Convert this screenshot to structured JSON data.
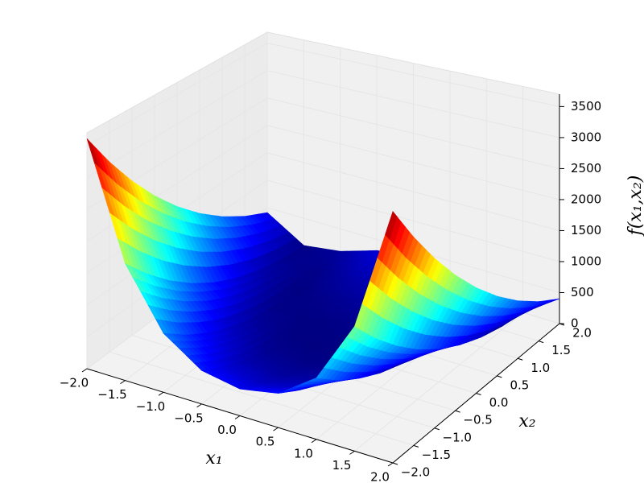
{
  "chart_data": {
    "type": "surface",
    "xlabel": "x₁",
    "ylabel": "x₂",
    "zlabel": "f(x₁,x₂)",
    "colormap": "jet",
    "x": [
      -2,
      -1.5,
      -1,
      -0.5,
      0,
      0.5,
      1,
      1.5,
      2
    ],
    "y": [
      -2,
      -1.5,
      -1,
      -0.5,
      0,
      0.5,
      1,
      1.5,
      2
    ],
    "z": [
      [
        3609,
        1812.5,
        904,
        508.5,
        401,
        506.5,
        900,
        1806.5,
        3601
      ],
      [
        3034,
        1412.5,
        629,
        308.5,
        226,
        306.5,
        625,
        1406.5,
        3026
      ],
      [
        2509,
        1062.5,
        404,
        158.5,
        101,
        156.5,
        400,
        1056.5,
        2501
      ],
      [
        2034,
        762.5,
        229,
        58.5,
        26,
        56.5,
        225,
        756.5,
        2026
      ],
      [
        1609,
        512.5,
        104,
        8.5,
        1,
        6.5,
        100,
        506.5,
        1601
      ],
      [
        1234,
        312.5,
        29,
        8.5,
        26,
        6.5,
        25,
        306.5,
        1226
      ],
      [
        909,
        162.5,
        4,
        58.5,
        101,
        56.5,
        0,
        156.5,
        901
      ],
      [
        634,
        62.5,
        29,
        158.5,
        226,
        156.5,
        25,
        56.5,
        626
      ],
      [
        409,
        12.5,
        104,
        308.5,
        401,
        306.5,
        100,
        6.5,
        401
      ]
    ],
    "xlim": [
      -2,
      2
    ],
    "ylim": [
      -2,
      2
    ],
    "zlim": [
      0,
      3700
    ],
    "xticks": [
      {
        "value": -2,
        "label": "−2.0"
      },
      {
        "value": -1.5,
        "label": "−1.5"
      },
      {
        "value": -1,
        "label": "−1.0"
      },
      {
        "value": -0.5,
        "label": "−0.5"
      },
      {
        "value": 0,
        "label": "0.0"
      },
      {
        "value": 0.5,
        "label": "0.5"
      },
      {
        "value": 1,
        "label": "1.0"
      },
      {
        "value": 1.5,
        "label": "1.5"
      },
      {
        "value": 2,
        "label": "2.0"
      }
    ],
    "yticks": [
      {
        "value": -2,
        "label": "−2.0"
      },
      {
        "value": -1.5,
        "label": "−1.5"
      },
      {
        "value": -1,
        "label": "−1.0"
      },
      {
        "value": -0.5,
        "label": "−0.5"
      },
      {
        "value": 0,
        "label": "0.0"
      },
      {
        "value": 0.5,
        "label": "0.5"
      },
      {
        "value": 1,
        "label": "1.0"
      },
      {
        "value": 1.5,
        "label": "1.5"
      },
      {
        "value": 2,
        "label": "2.0"
      }
    ],
    "zticks": [
      0,
      500,
      1000,
      1500,
      2000,
      2500,
      3000,
      3500
    ],
    "grid": true
  }
}
